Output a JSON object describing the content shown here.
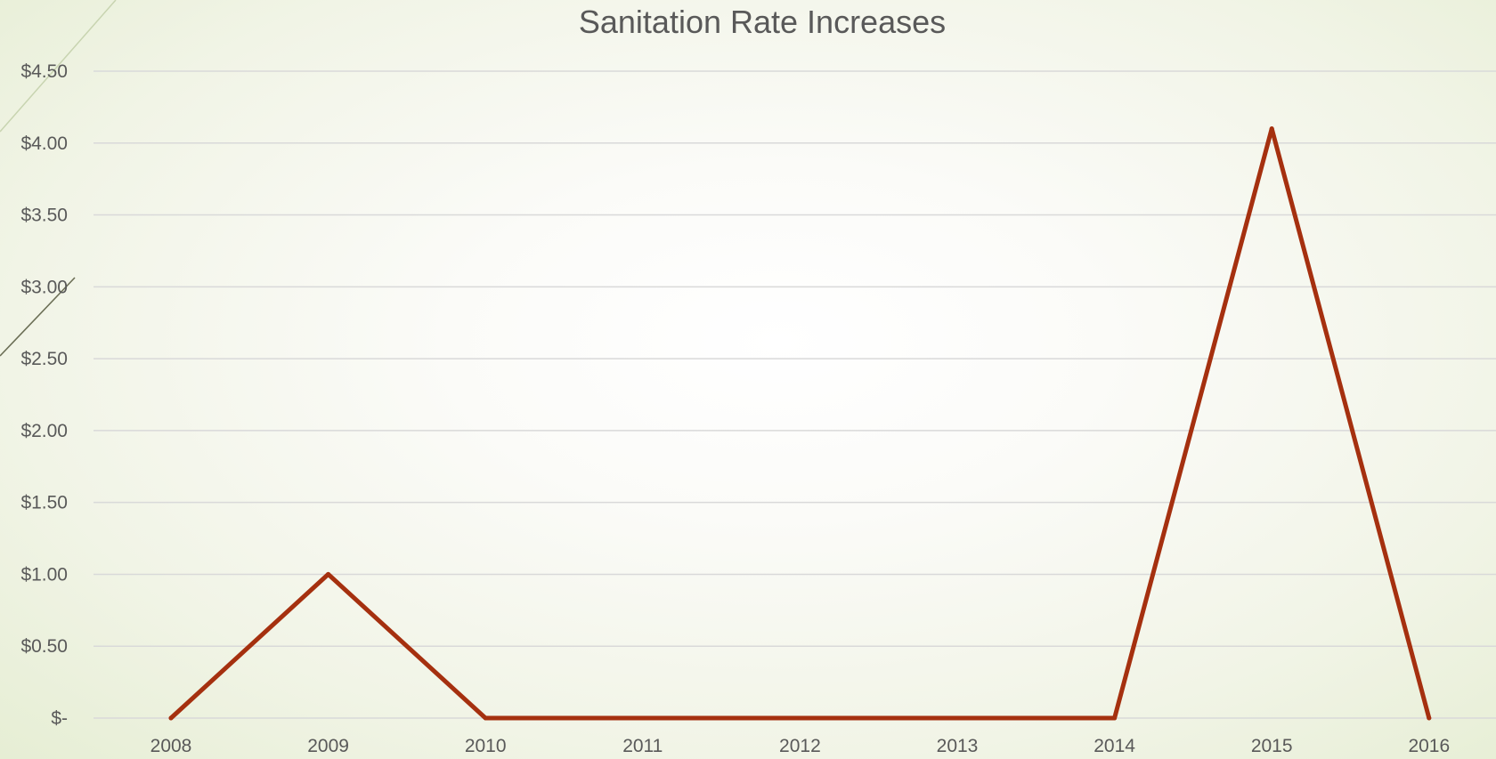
{
  "chart_data": {
    "type": "line",
    "title": "Sanitation Rate Increases",
    "xlabel": "",
    "ylabel": "",
    "x": [
      "2008",
      "2009",
      "2010",
      "2011",
      "2012",
      "2013",
      "2014",
      "2015",
      "2016"
    ],
    "series": [
      {
        "values": [
          0,
          1.0,
          0,
          0,
          0,
          0,
          0,
          4.1,
          0
        ],
        "color": "#a5300f"
      }
    ],
    "ylim": [
      0,
      4.5
    ],
    "yticks": [
      0,
      0.5,
      1.0,
      1.5,
      2.0,
      2.5,
      3.0,
      3.5,
      4.0,
      4.5
    ],
    "ytick_labels": [
      "$-",
      "$0.50",
      "$1.00",
      "$1.50",
      "$2.00",
      "$2.50",
      "$3.00",
      "$3.50",
      "$4.00",
      "$4.50"
    ],
    "grid": true,
    "legend": "none"
  },
  "colors": {
    "line": "#a5300f",
    "grid": "#d9d9d9",
    "text": "#595959",
    "background": "#f3f5ea"
  }
}
